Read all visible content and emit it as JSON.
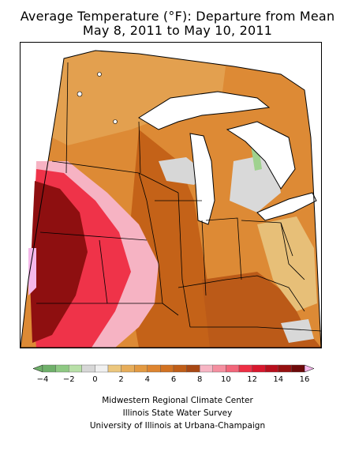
{
  "title": {
    "line1": "Average Temperature (°F): Departure from Mean",
    "line2": "May 8, 2011 to May 10, 2011"
  },
  "legend": {
    "colors": [
      "#6fb06a",
      "#8ec983",
      "#b8e0a8",
      "#d7d7d7",
      "#f0f0f0",
      "#ecc77e",
      "#e7ad5a",
      "#e39a42",
      "#de8530",
      "#d27222",
      "#c05e18",
      "#a84814",
      "#f7b5c4",
      "#f58fa0",
      "#f2667a",
      "#ee2f45",
      "#d8172d",
      "#b80f1d",
      "#961010",
      "#6d0a0a"
    ],
    "tick_labels": [
      "-4",
      "-2",
      "0",
      "2",
      "4",
      "6",
      "8",
      "10",
      "12",
      "14",
      "16"
    ],
    "low_arrow_color": "#6fb06a",
    "high_arrow_color": "#f5b8ea"
  },
  "credits": {
    "line1": "Midwestern Regional Climate Center",
    "line2": "Illinois State Water Survey",
    "line3": "University of Illinois at Urbana-Champaign"
  },
  "map": {
    "region": "Midwestern United States",
    "lake_color": "#ffffff",
    "border_color": "#000000"
  }
}
